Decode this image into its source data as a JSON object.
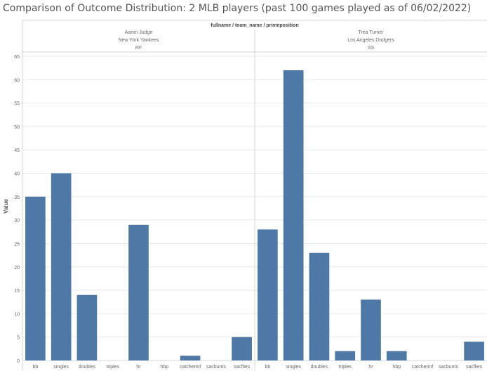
{
  "title": "Comparison of Outcome Distribution: 2 MLB players (past 100 games played as of 06/02/2022)",
  "colors": {
    "bar": "#4e79a7",
    "grid": "#e8e8e8",
    "text": "#666666"
  },
  "chart_data": {
    "type": "bar",
    "title": "Comparison of Outcome Distribution: 2 MLB players (past 100 games played as of 06/02/2022)",
    "header_label": "fullname / team_name / primeposition",
    "ylabel": "Value",
    "ylim": [
      0,
      65
    ],
    "yticks": [
      0,
      5,
      10,
      15,
      20,
      25,
      30,
      35,
      40,
      45,
      50,
      55,
      60,
      65
    ],
    "categories": [
      "bb",
      "singles",
      "doubles",
      "triples",
      "hr",
      "hbp",
      "catcherinf",
      "sacbunts",
      "sacflies"
    ],
    "panels": [
      {
        "fullname": "Aaron Judge",
        "team_name": "New York Yankees",
        "primeposition": "RF",
        "values": [
          35,
          40,
          14,
          0,
          29,
          0,
          1,
          0,
          5
        ]
      },
      {
        "fullname": "Trea Turner",
        "team_name": "Los Angeles Dodgers",
        "primeposition": "SS",
        "values": [
          28,
          62,
          23,
          2,
          13,
          2,
          0,
          0,
          4
        ]
      }
    ]
  }
}
